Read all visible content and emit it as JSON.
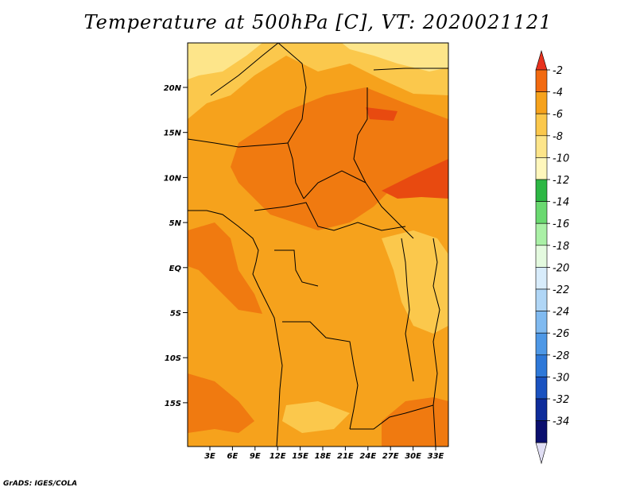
{
  "title": "Temperature at 500hPa [C], VT: 2020021121",
  "footer": "GrADS: IGES/COLA",
  "map": {
    "lat_ticks": [
      "20N",
      "15N",
      "10N",
      "5N",
      "EQ",
      "5S",
      "10S",
      "15S"
    ],
    "lon_ticks": [
      "3E",
      "6E",
      "9E",
      "12E",
      "15E",
      "18E",
      "21E",
      "24E",
      "27E",
      "30E",
      "33E"
    ],
    "field_colors": {
      "lightest": "#fde58a",
      "light": "#fbc84c",
      "mid": "#f6a21c",
      "dark": "#f07a10",
      "darkest": "#e84a10"
    }
  },
  "colorbar": {
    "labels": [
      "-2",
      "-4",
      "-6",
      "-8",
      "-10",
      "-12",
      "-14",
      "-16",
      "-18",
      "-20",
      "-22",
      "-24",
      "-26",
      "-28",
      "-30",
      "-32",
      "-34"
    ],
    "colors": [
      "#e8321e",
      "#f26a10",
      "#f6a21c",
      "#fbc84c",
      "#fde58a",
      "#fff7bc",
      "#2db744",
      "#6ad970",
      "#aaf0a6",
      "#e4fadf",
      "#d8ecfb",
      "#b0d6f6",
      "#80baf0",
      "#4e98e6",
      "#2e78d8",
      "#1a52c0",
      "#0e2c9a",
      "#0a0f6e",
      "#e0def4"
    ]
  }
}
